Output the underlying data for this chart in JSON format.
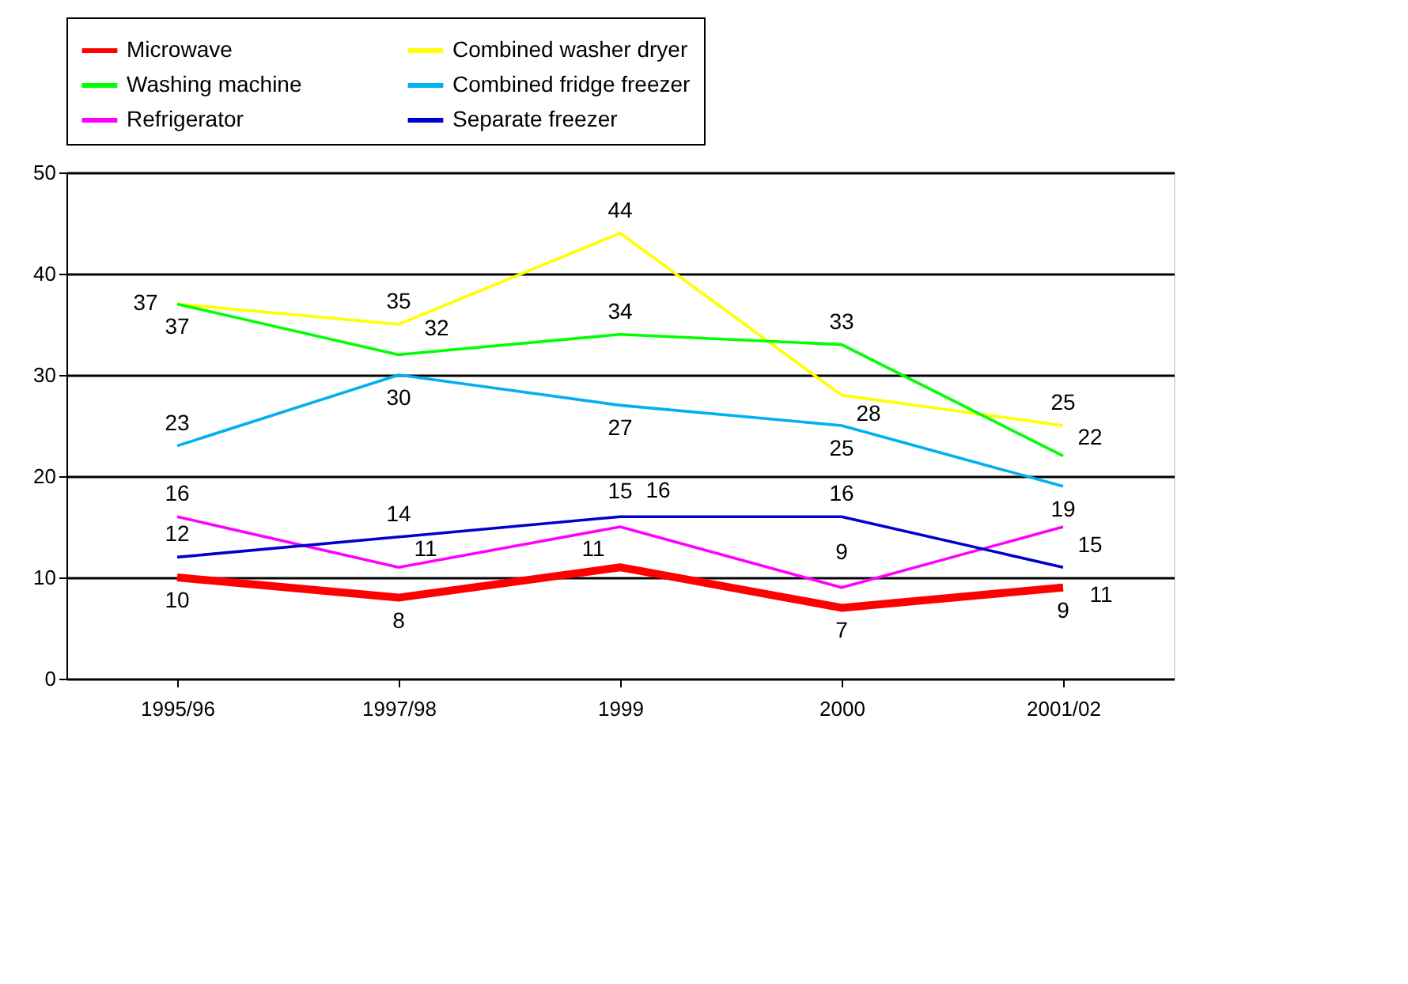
{
  "chart_data": {
    "type": "line",
    "categories": [
      "1995/96",
      "1997/98",
      "1999",
      "2000",
      "2001/02"
    ],
    "series": [
      {
        "name": "Microwave",
        "color": "#ff0000",
        "values": [
          10,
          8,
          11,
          7,
          9
        ]
      },
      {
        "name": "Combined washer dryer",
        "color": "#ffff00",
        "values": [
          37,
          35,
          44,
          28,
          25
        ]
      },
      {
        "name": "Washing machine",
        "color": "#00ff00",
        "values": [
          37,
          32,
          34,
          33,
          22
        ]
      },
      {
        "name": "Combined fridge freezer",
        "color": "#00b0f0",
        "values": [
          23,
          30,
          27,
          25,
          19
        ]
      },
      {
        "name": "Refrigerator",
        "color": "#ff00ff",
        "values": [
          16,
          11,
          15,
          9,
          15
        ]
      },
      {
        "name": "Separate freezer",
        "color": "#0000cc",
        "values": [
          12,
          14,
          16,
          16,
          11
        ]
      }
    ],
    "ylim": [
      0,
      50
    ],
    "yticks": [
      0,
      10,
      20,
      30,
      40,
      50
    ],
    "grid": "y",
    "legend": "top",
    "data_labels": true,
    "marker": "none",
    "line_style": "solid"
  }
}
